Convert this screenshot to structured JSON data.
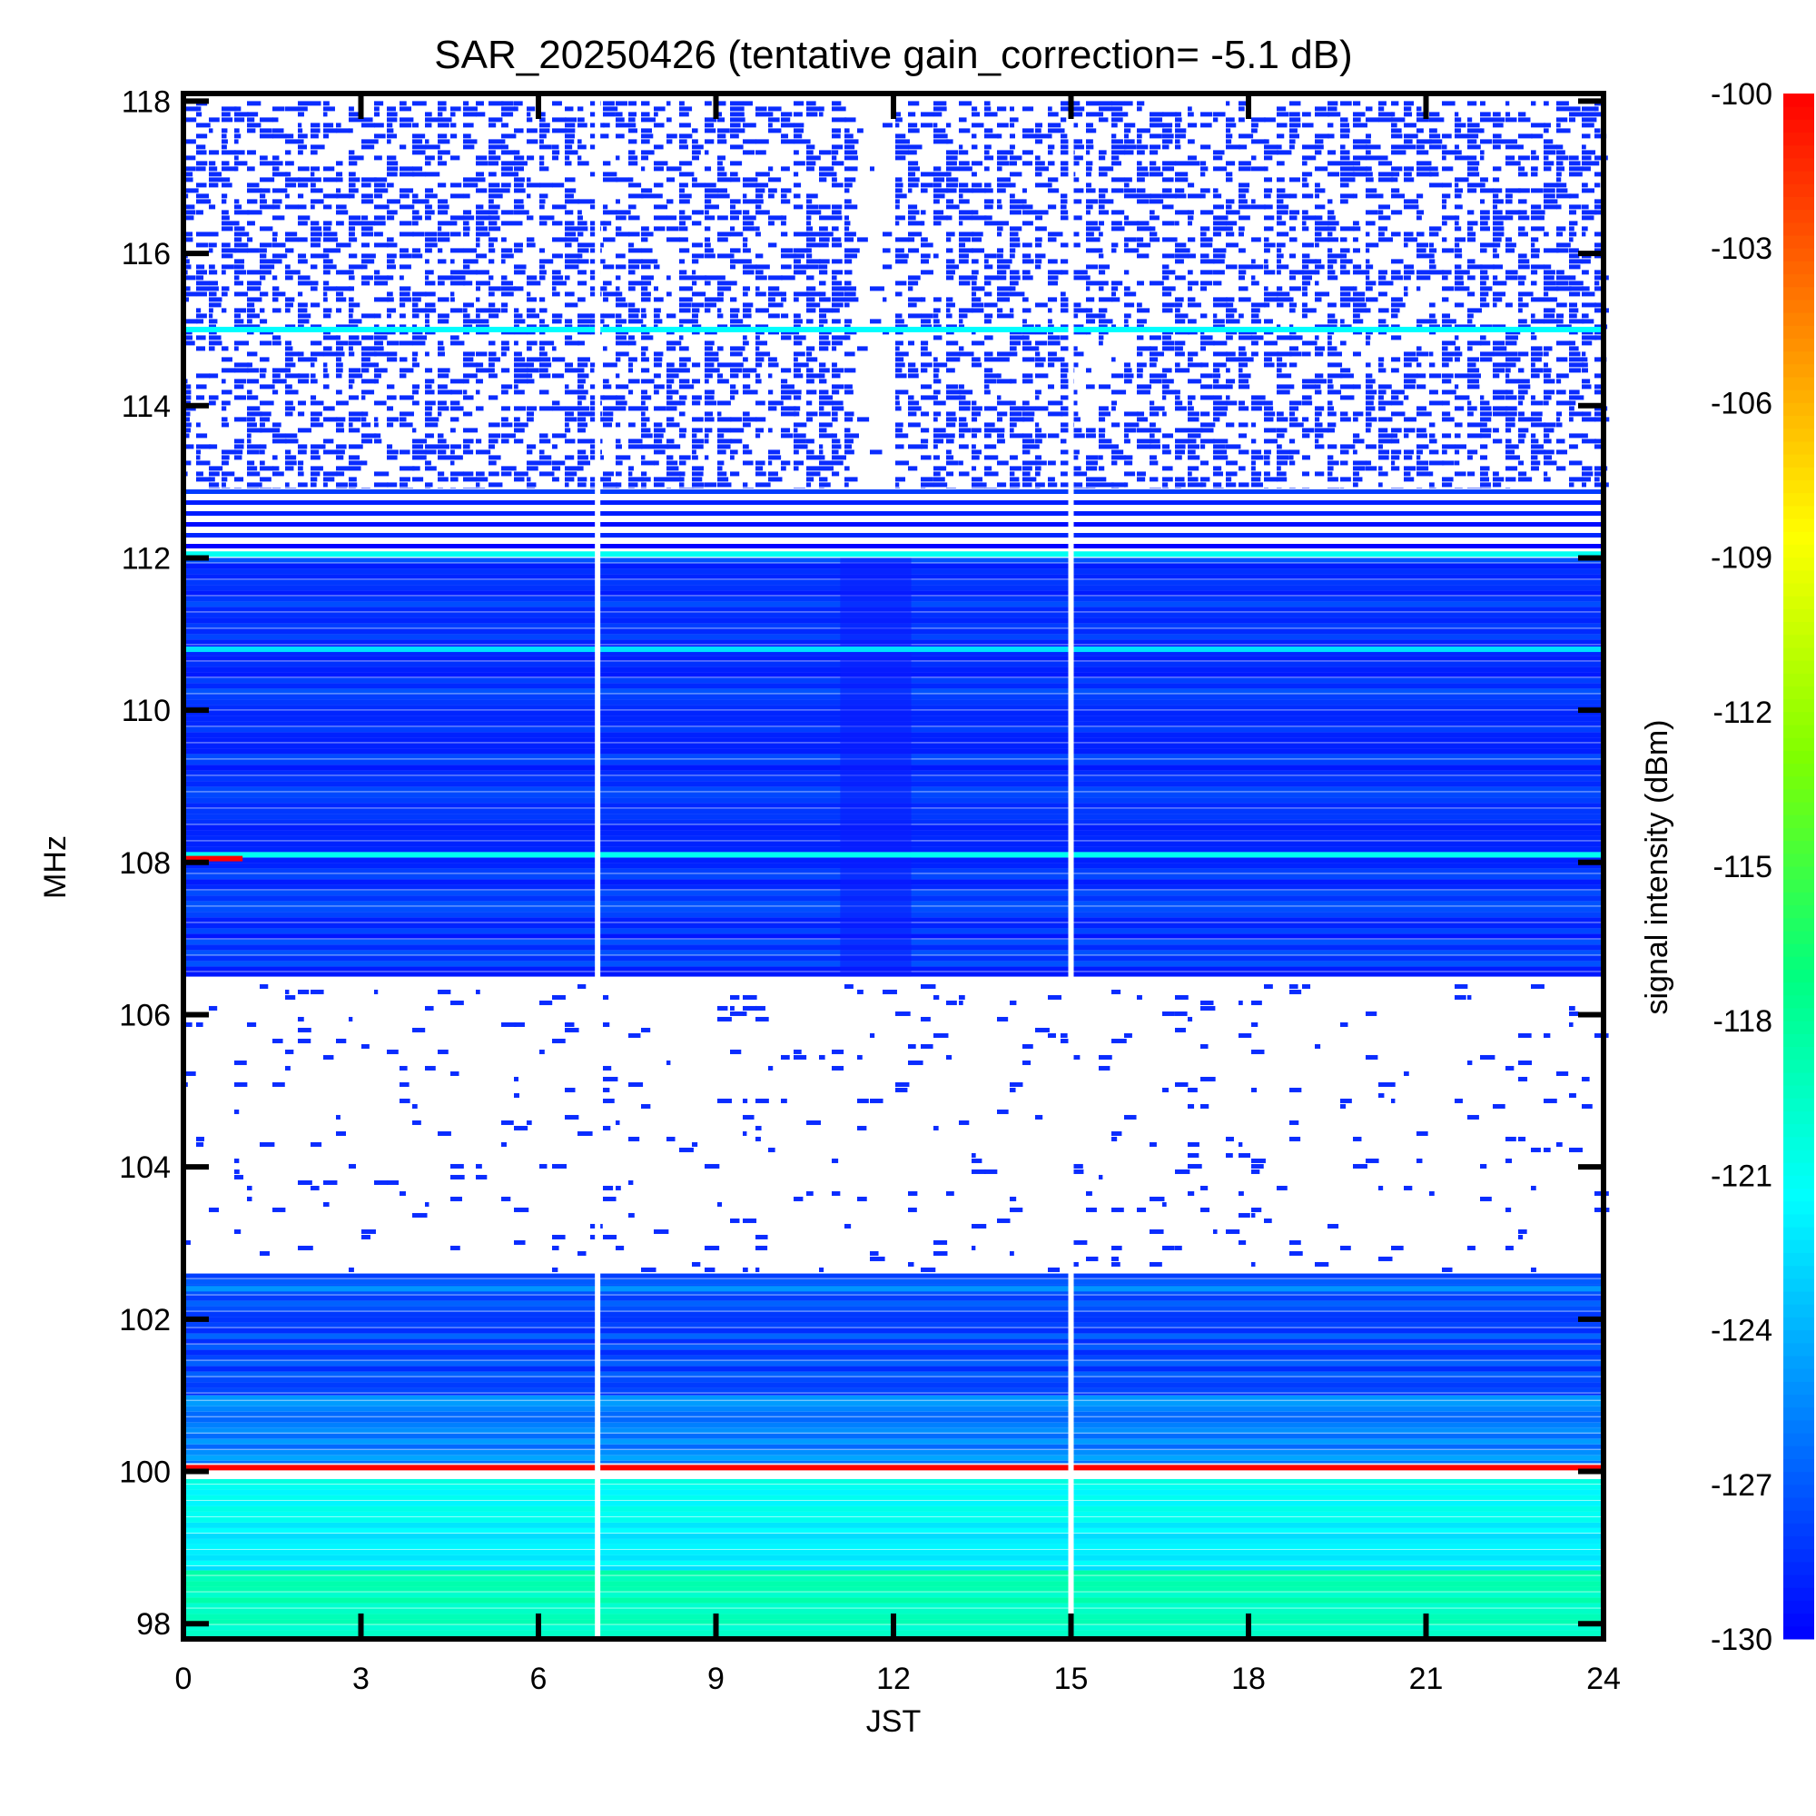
{
  "chart_data": {
    "type": "heatmap",
    "title": "SAR_20250426 (tentative gain_correction= -5.1 dB)",
    "xlabel": "JST",
    "ylabel": "MHz",
    "colorbar_label": "signal intensity (dBm)",
    "xlim": [
      0,
      24
    ],
    "ylim": [
      97.8,
      118.1
    ],
    "x_ticks": [
      0,
      3,
      6,
      9,
      12,
      15,
      18,
      21,
      24
    ],
    "y_ticks": [
      98,
      100,
      102,
      104,
      106,
      108,
      110,
      112,
      114,
      116,
      118
    ],
    "colorbar_range": [
      -130,
      -100
    ],
    "colorbar_ticks": [
      -100,
      -103,
      -106,
      -109,
      -112,
      -115,
      -118,
      -121,
      -124,
      -127,
      -130
    ],
    "colormap": [
      "#0000ff",
      "#0080ff",
      "#00ffff",
      "#00ff80",
      "#80ff00",
      "#ffff00",
      "#ff8000",
      "#ff0000"
    ],
    "grid": false,
    "data_gaps_jst": [
      7.0,
      15.0
    ],
    "reduced_signal_window_jst": [
      11.1,
      12.3
    ],
    "bands": [
      {
        "freq_range_mhz": [
          112.9,
          118.0
        ],
        "mean_dbm": -130,
        "coverage": "sparse"
      },
      {
        "freq_range_mhz": [
          112.1,
          112.9
        ],
        "mean_dbm": -129.5,
        "coverage": "striped"
      },
      {
        "freq_range_mhz": [
          106.5,
          112.0
        ],
        "mean_dbm": -128.3,
        "coverage": "dense"
      },
      {
        "freq_range_mhz": [
          102.6,
          106.4
        ],
        "mean_dbm": -130,
        "coverage": "mostly-empty"
      },
      {
        "freq_range_mhz": [
          101.0,
          102.6
        ],
        "mean_dbm": -127.5,
        "coverage": "dense"
      },
      {
        "freq_range_mhz": [
          100.1,
          101.0
        ],
        "mean_dbm": -125.5,
        "coverage": "dense"
      },
      {
        "freq_range_mhz": [
          98.7,
          99.9
        ],
        "mean_dbm": -121.5,
        "coverage": "dense"
      },
      {
        "freq_range_mhz": [
          97.8,
          98.7
        ],
        "mean_dbm": -119,
        "coverage": "dense"
      }
    ],
    "strong_lines": [
      {
        "freq_mhz": 115.0,
        "dbm": -121.5
      },
      {
        "freq_mhz": 112.05,
        "dbm": -121
      },
      {
        "freq_mhz": 110.8,
        "dbm": -122.5
      },
      {
        "freq_mhz": 108.1,
        "dbm": -121
      },
      {
        "freq_mhz": 108.05,
        "dbm": -100,
        "jst_range": [
          0,
          1
        ]
      },
      {
        "freq_mhz": 102.4,
        "dbm": -125
      },
      {
        "freq_mhz": 100.05,
        "dbm": -100
      }
    ]
  }
}
